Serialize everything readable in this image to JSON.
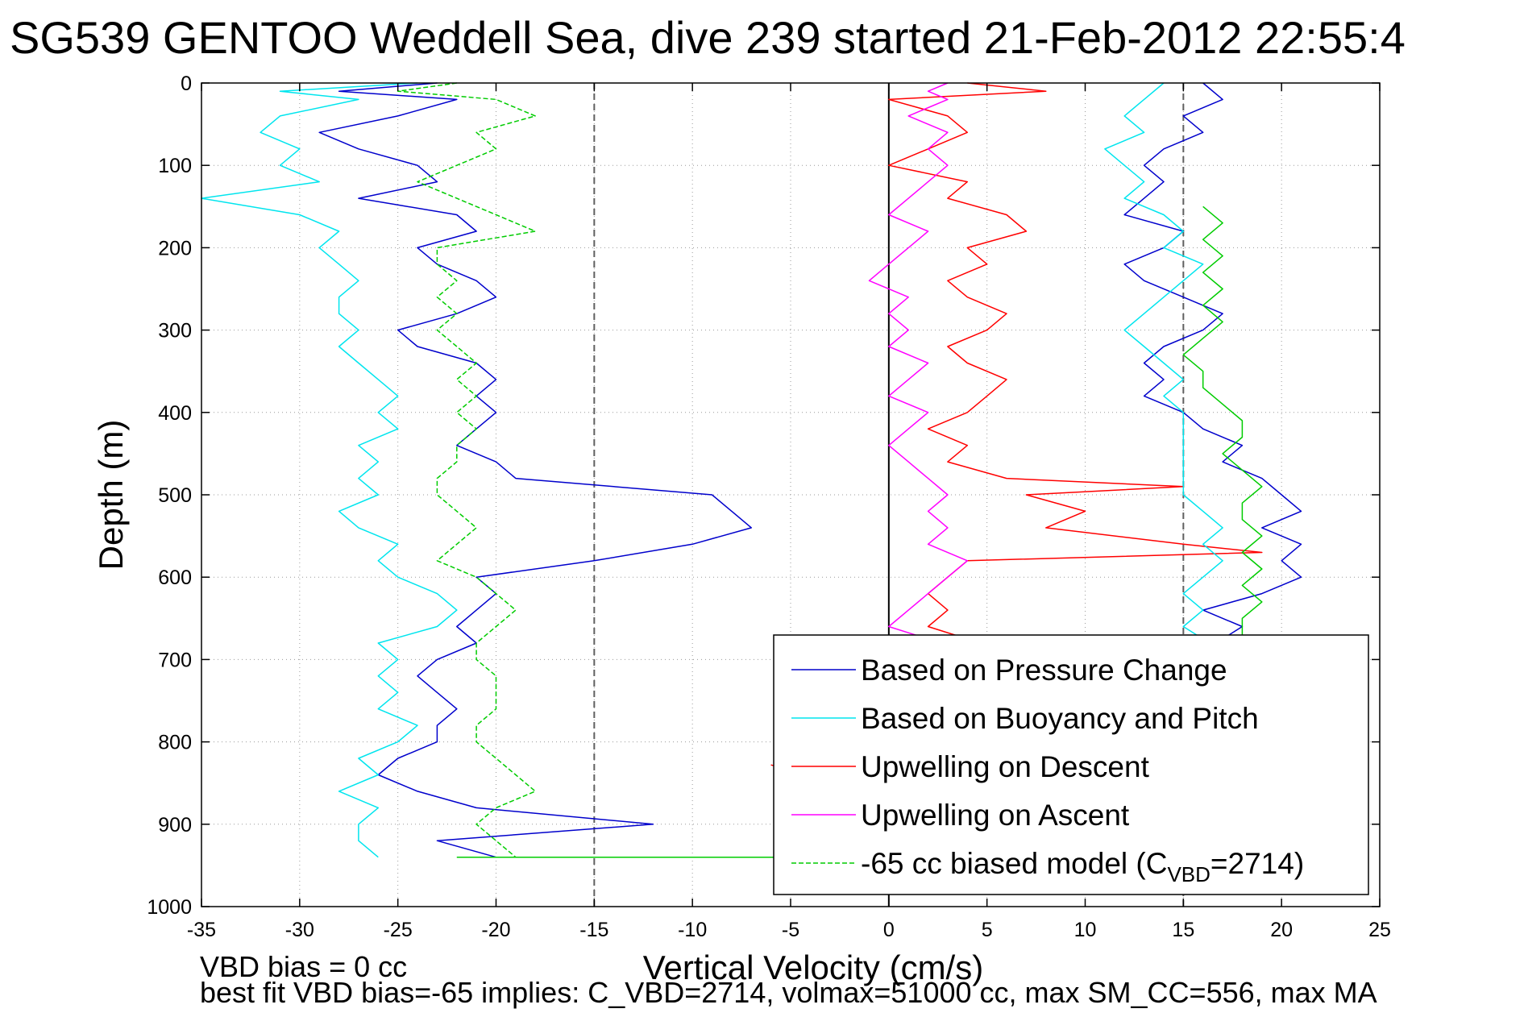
{
  "chart_data": {
    "type": "line",
    "title": "SG539 GENTOO Weddell Sea, dive 239 started 21-Feb-2012 22:55:4",
    "xlabel": "Vertical Velocity (cm/s)",
    "ylabel": "Depth (m)",
    "xlim": [
      -35,
      25
    ],
    "ylim": [
      0,
      1000
    ],
    "y_reversed": true,
    "grid": true,
    "x_ticks": [
      -35,
      -30,
      -25,
      -20,
      -15,
      -10,
      -5,
      0,
      5,
      10,
      15,
      20,
      25
    ],
    "x_tick_labels": [
      "-35",
      "-30",
      "-25",
      "-20",
      "-15",
      "-10",
      "-5",
      "0",
      "5",
      "10",
      "15",
      "20",
      "25"
    ],
    "y_ticks": [
      0,
      100,
      200,
      300,
      400,
      500,
      600,
      700,
      800,
      900,
      1000
    ],
    "y_tick_labels": [
      "0",
      "100",
      "200",
      "300",
      "400",
      "500",
      "600",
      "700",
      "800",
      "900",
      "1000"
    ],
    "reference_lines": [
      {
        "x": -15,
        "color": "#606060",
        "style": "dashed"
      },
      {
        "x": 0,
        "color": "#000000",
        "style": "solid"
      },
      {
        "x": 15,
        "color": "#606060",
        "style": "dashed"
      }
    ],
    "legend_position": "bottom-right",
    "series": [
      {
        "name": "Based on Pressure Change",
        "color": "#0000cc",
        "style": "solid",
        "depth": [
          0,
          10,
          20,
          40,
          60,
          80,
          100,
          120,
          140,
          160,
          180,
          200,
          220,
          240,
          260,
          280,
          300,
          320,
          340,
          360,
          380,
          400,
          420,
          440,
          460,
          480,
          500,
          520,
          540,
          560,
          580,
          600,
          620,
          640,
          660,
          680,
          700,
          720,
          740,
          760,
          780,
          800,
          820,
          840,
          860,
          880,
          900,
          920,
          940
        ],
        "velocity": [
          -23,
          -28,
          -22,
          -25,
          -29,
          -27,
          -24,
          -23,
          -27,
          -22,
          -21,
          -24,
          -23,
          -21,
          -20,
          -22,
          -25,
          -24,
          -21,
          -20,
          -21,
          -20,
          -21,
          -22,
          -20,
          -19,
          -9,
          -8,
          -7,
          -10,
          -15,
          -21,
          -20,
          -21,
          -22,
          -21,
          -23,
          -24,
          -23,
          -22,
          -23,
          -23,
          -25,
          -26,
          -24,
          -21,
          -12,
          -23,
          -20
        ]
      },
      {
        "name": "Based on Buoyancy and Pitch",
        "color": "#00e5ee",
        "style": "solid",
        "depth": [
          0,
          10,
          20,
          40,
          60,
          80,
          100,
          120,
          140,
          160,
          180,
          200,
          220,
          240,
          260,
          280,
          300,
          320,
          340,
          360,
          380,
          400,
          420,
          440,
          460,
          480,
          500,
          520,
          540,
          560,
          580,
          600,
          620,
          640,
          660,
          680,
          700,
          720,
          740,
          760,
          780,
          800,
          820,
          840,
          860,
          880,
          900,
          920,
          940
        ],
        "velocity": [
          -24,
          -31,
          -27,
          -31,
          -32,
          -30,
          -31,
          -29,
          -35,
          -30,
          -28,
          -29,
          -28,
          -27,
          -28,
          -28,
          -27,
          -28,
          -27,
          -26,
          -25,
          -26,
          -25,
          -27,
          -26,
          -27,
          -26,
          -28,
          -27,
          -25,
          -26,
          -25,
          -23,
          -22,
          -23,
          -26,
          -25,
          -26,
          -25,
          -26,
          -24,
          -25,
          -27,
          -26,
          -28,
          -26,
          -27,
          -27,
          -26
        ]
      },
      {
        "name": "Upwelling on Descent",
        "color": "#ff0000",
        "style": "solid",
        "depth": [
          0,
          10,
          20,
          40,
          60,
          80,
          100,
          120,
          140,
          160,
          180,
          200,
          220,
          240,
          260,
          280,
          300,
          320,
          340,
          360,
          380,
          400,
          420,
          440,
          460,
          480,
          490,
          500,
          520,
          540,
          560,
          570,
          580,
          600,
          620,
          640,
          660,
          675
        ],
        "velocity": [
          4,
          8,
          0,
          3,
          4,
          2,
          0,
          4,
          3,
          6,
          7,
          4,
          5,
          3,
          4,
          6,
          5,
          3,
          4,
          6,
          5,
          4,
          2,
          4,
          3,
          6,
          15,
          7,
          10,
          8,
          15,
          19,
          4,
          3,
          2,
          3,
          2,
          4
        ]
      },
      {
        "name": "Upwelling on Ascent",
        "color": "#ff00ff",
        "style": "solid",
        "depth": [
          0,
          10,
          20,
          40,
          60,
          80,
          100,
          120,
          140,
          160,
          180,
          200,
          220,
          240,
          260,
          280,
          300,
          320,
          340,
          360,
          380,
          400,
          420,
          440,
          460,
          480,
          500,
          520,
          540,
          560,
          580,
          600,
          620,
          640,
          660,
          675
        ],
        "velocity": [
          3,
          2,
          3,
          1,
          3,
          2,
          3,
          2,
          1,
          0,
          2,
          1,
          0,
          -1,
          1,
          0,
          1,
          0,
          2,
          1,
          0,
          2,
          1,
          0,
          1,
          2,
          3,
          2,
          3,
          2,
          4,
          3,
          2,
          1,
          0,
          2
        ]
      },
      {
        "name": "-65 cc biased model (C",
        "name_sub": "VBD",
        "name_tail": "=2714)",
        "color": "#00cc00",
        "style": "dashed",
        "depth": [
          0,
          10,
          20,
          40,
          60,
          80,
          100,
          120,
          140,
          160,
          180,
          200,
          220,
          240,
          260,
          280,
          300,
          320,
          340,
          360,
          380,
          400,
          420,
          440,
          460,
          480,
          500,
          520,
          540,
          560,
          580,
          600,
          620,
          640,
          660,
          680,
          700,
          720,
          740,
          760,
          780,
          800,
          820,
          840,
          860,
          880,
          900,
          920,
          940
        ],
        "velocity": [
          -22,
          -25,
          -20,
          -18,
          -21,
          -20,
          -22,
          -24,
          -22,
          -20,
          -18,
          -23,
          -23,
          -22,
          -23,
          -22,
          -23,
          -22,
          -21,
          -22,
          -21,
          -22,
          -21,
          -22,
          -22,
          -23,
          -23,
          -22,
          -21,
          -22,
          -23,
          -21,
          -20,
          -19,
          -20,
          -21,
          -21,
          -20,
          -20,
          -20,
          -21,
          -21,
          -20,
          -19,
          -18,
          -20,
          -21,
          -20,
          -19
        ]
      }
    ],
    "right_panel_series": [
      {
        "color": "#0000cc",
        "depth": [
          0,
          20,
          40,
          60,
          80,
          100,
          120,
          140,
          160,
          180,
          200,
          220,
          240,
          260,
          280,
          300,
          320,
          340,
          360,
          380,
          400,
          420,
          440,
          460,
          480,
          500,
          520,
          540,
          560,
          580,
          600,
          620,
          640,
          660,
          675
        ],
        "velocity": [
          16,
          17,
          15,
          16,
          14,
          13,
          14,
          13,
          12,
          15,
          14,
          12,
          13,
          15,
          17,
          16,
          14,
          13,
          14,
          13,
          15,
          16,
          18,
          17,
          19,
          20,
          21,
          19,
          21,
          20,
          21,
          19,
          16,
          18,
          17
        ]
      },
      {
        "color": "#00e5ee",
        "depth": [
          0,
          20,
          40,
          60,
          80,
          100,
          120,
          140,
          160,
          180,
          200,
          220,
          240,
          260,
          280,
          300,
          320,
          340,
          360,
          380,
          400,
          420,
          440,
          460,
          480,
          500,
          520,
          540,
          560,
          580,
          600,
          620,
          640,
          660,
          675
        ],
        "velocity": [
          14,
          13,
          12,
          13,
          11,
          12,
          13,
          12,
          14,
          15,
          14,
          16,
          15,
          14,
          13,
          12,
          13,
          14,
          15,
          14,
          15,
          15,
          15,
          15,
          15,
          15,
          16,
          17,
          16,
          17,
          16,
          15,
          16,
          15,
          16
        ]
      },
      {
        "color": "#00cc00",
        "depth": [
          150,
          170,
          190,
          210,
          230,
          250,
          270,
          290,
          310,
          330,
          350,
          370,
          390,
          410,
          430,
          450,
          470,
          490,
          510,
          530,
          550,
          570,
          590,
          610,
          630,
          650,
          675
        ],
        "velocity": [
          16,
          17,
          16,
          17,
          16,
          17,
          16,
          17,
          16,
          15,
          16,
          16,
          17,
          18,
          18,
          17,
          18,
          19,
          18,
          18,
          19,
          18,
          19,
          18,
          19,
          18,
          18
        ]
      }
    ],
    "left_spike_series": [
      {
        "color": "#ff0000",
        "depth": [
          828,
          831
        ],
        "velocity": [
          -6,
          -5.5
        ]
      }
    ],
    "bottom_spike_series": [
      {
        "color": "#00cc00",
        "depth": [
          940,
          940
        ],
        "velocity": [
          -22,
          -5
        ]
      }
    ]
  },
  "footer": {
    "line1": "VBD bias = 0 cc",
    "line2": "best fit VBD bias=-65 implies: C_VBD=2714, volmax=51000 cc, max SM_CC=556, max MA"
  }
}
